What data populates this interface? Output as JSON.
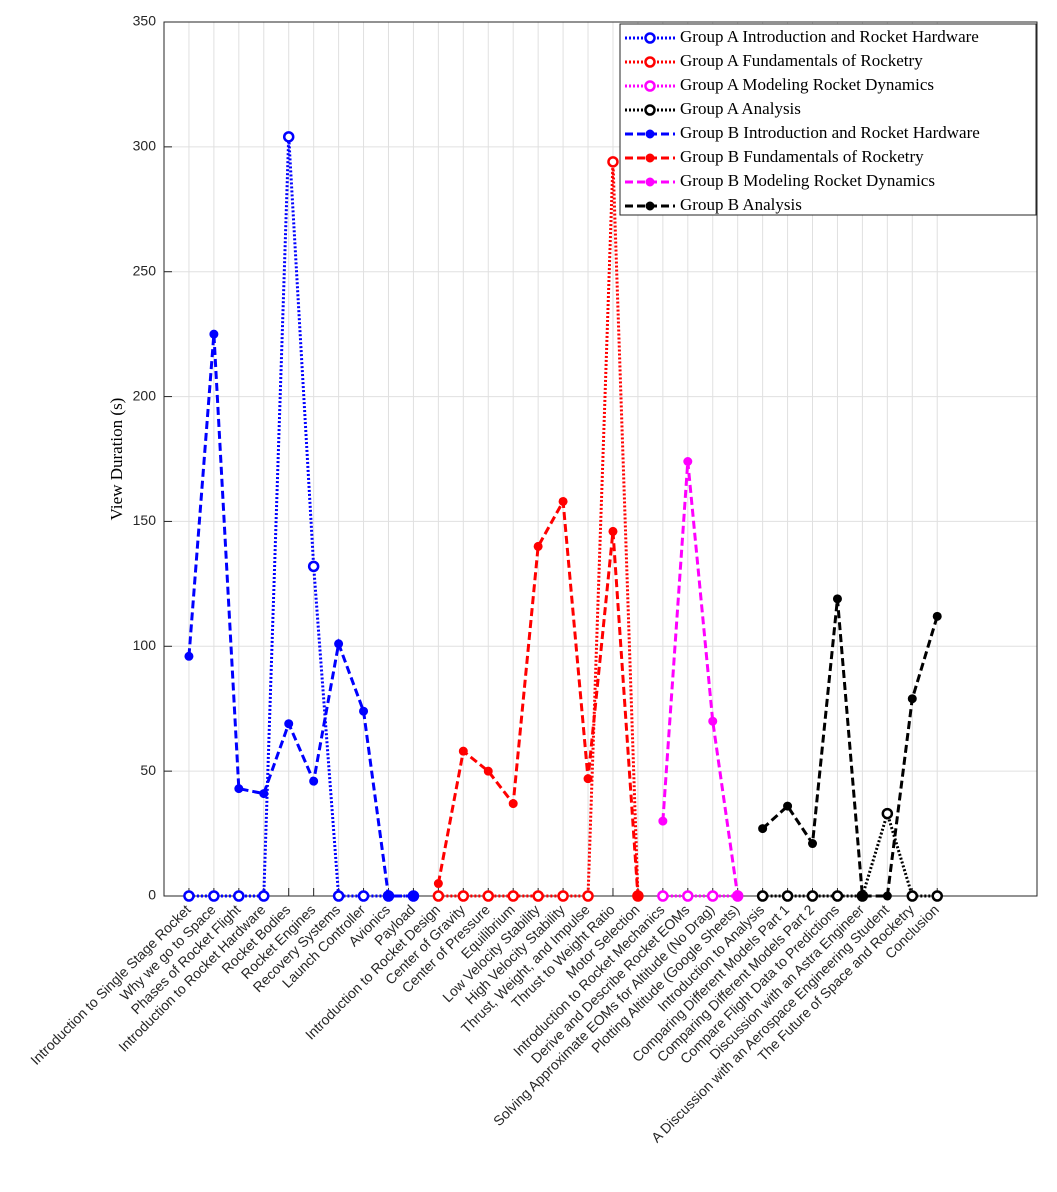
{
  "chart_data": {
    "type": "line",
    "y_label": "View Duration (s)",
    "categories": [
      "Introduction to Single Stage Rocket",
      "Why we go to Space",
      "Phases of Rocket Flight",
      "Introduction to Rocket Hardware",
      "Rocket Bodies",
      "Rocket Engines",
      "Recovery Systems",
      "Launch Controller",
      "Avionics",
      "Payload",
      "Introduction to Rocket Design",
      "Center of Gravity",
      "Center of Pressure",
      "Equilibrium",
      "Low Velocity Stability",
      "High Velocity Stability",
      "Thrust, Weight, and Impulse",
      "Thrust to Weight Ratio",
      "Motor Selection",
      "Introduction to Rocket Mechanics",
      "Derive and Describe Rocket EOMs",
      "Solving Approximate EOMs for Altitude (No Drag)",
      "Plotting Altitude (Google Sheets)",
      "Introduction to Analysis",
      "Comparing Different Models Part 1",
      "Comparing Different Models Part 2",
      "Compare Flight Data to Predictions",
      "Discussion with an Astra Engineer",
      "A Discussion with an Aerospace Engineering Student",
      "The Future of Space and Rocketry",
      "Conclusion"
    ],
    "ylim": [
      0,
      350
    ],
    "yticks": [
      0,
      50,
      100,
      150,
      200,
      250,
      300,
      350
    ],
    "grid": true,
    "legend": "top-right",
    "series": [
      {
        "name": "Group A Introduction and Rocket Hardware",
        "color": "#0000ff",
        "line_style": "dotted",
        "marker": "open",
        "values": [
          0,
          0,
          0,
          0,
          304,
          132,
          0,
          0,
          0,
          0,
          null,
          null,
          null,
          null,
          null,
          null,
          null,
          null,
          null,
          null,
          null,
          null,
          null,
          null,
          null,
          null,
          null,
          null,
          null,
          null,
          null
        ]
      },
      {
        "name": "Group A Fundamentals of Rocketry",
        "color": "#ff0000",
        "line_style": "dotted",
        "marker": "open",
        "values": [
          null,
          null,
          null,
          null,
          null,
          null,
          null,
          null,
          null,
          null,
          0,
          0,
          0,
          0,
          0,
          0,
          0,
          294,
          0,
          null,
          null,
          null,
          null,
          null,
          null,
          null,
          null,
          null,
          null,
          null,
          null
        ]
      },
      {
        "name": "Group A Modeling Rocket Dynamics",
        "color": "#ff00ff",
        "line_style": "dotted",
        "marker": "open",
        "values": [
          null,
          null,
          null,
          null,
          null,
          null,
          null,
          null,
          null,
          null,
          null,
          null,
          null,
          null,
          null,
          null,
          null,
          null,
          null,
          0,
          0,
          0,
          0,
          null,
          null,
          null,
          null,
          null,
          null,
          null,
          null
        ]
      },
      {
        "name": "Group A Analysis",
        "color": "#000000",
        "line_style": "dotted",
        "marker": "open",
        "values": [
          null,
          null,
          null,
          null,
          null,
          null,
          null,
          null,
          null,
          null,
          null,
          null,
          null,
          null,
          null,
          null,
          null,
          null,
          null,
          null,
          null,
          null,
          null,
          0,
          0,
          0,
          0,
          0,
          33,
          0,
          0
        ]
      },
      {
        "name": "Group B Introduction and Rocket Hardware",
        "color": "#0000ff",
        "line_style": "dashed",
        "marker": "filled",
        "values": [
          96,
          225,
          43,
          41,
          69,
          46,
          101,
          74,
          0,
          0,
          null,
          null,
          null,
          null,
          null,
          null,
          null,
          null,
          null,
          null,
          null,
          null,
          null,
          null,
          null,
          null,
          null,
          null,
          null,
          null,
          null
        ]
      },
      {
        "name": "Group B Fundamentals of Rocketry",
        "color": "#ff0000",
        "line_style": "dashed",
        "marker": "filled",
        "values": [
          null,
          null,
          null,
          null,
          null,
          null,
          null,
          null,
          null,
          null,
          5,
          58,
          50,
          37,
          140,
          158,
          47,
          146,
          0,
          null,
          null,
          null,
          null,
          null,
          null,
          null,
          null,
          null,
          null,
          null,
          null
        ]
      },
      {
        "name": "Group B Modeling Rocket Dynamics",
        "color": "#ff00ff",
        "line_style": "dashed",
        "marker": "filled",
        "values": [
          null,
          null,
          null,
          null,
          null,
          null,
          null,
          null,
          null,
          null,
          null,
          null,
          null,
          null,
          null,
          null,
          null,
          null,
          null,
          30,
          174,
          70,
          0,
          null,
          null,
          null,
          null,
          null,
          null,
          null,
          null
        ]
      },
      {
        "name": "Group B Analysis",
        "color": "#000000",
        "line_style": "dashed",
        "marker": "filled",
        "values": [
          null,
          null,
          null,
          null,
          null,
          null,
          null,
          null,
          null,
          null,
          null,
          null,
          null,
          null,
          null,
          null,
          null,
          null,
          null,
          null,
          null,
          null,
          null,
          27,
          36,
          21,
          119,
          0,
          0,
          79,
          112
        ]
      }
    ]
  }
}
